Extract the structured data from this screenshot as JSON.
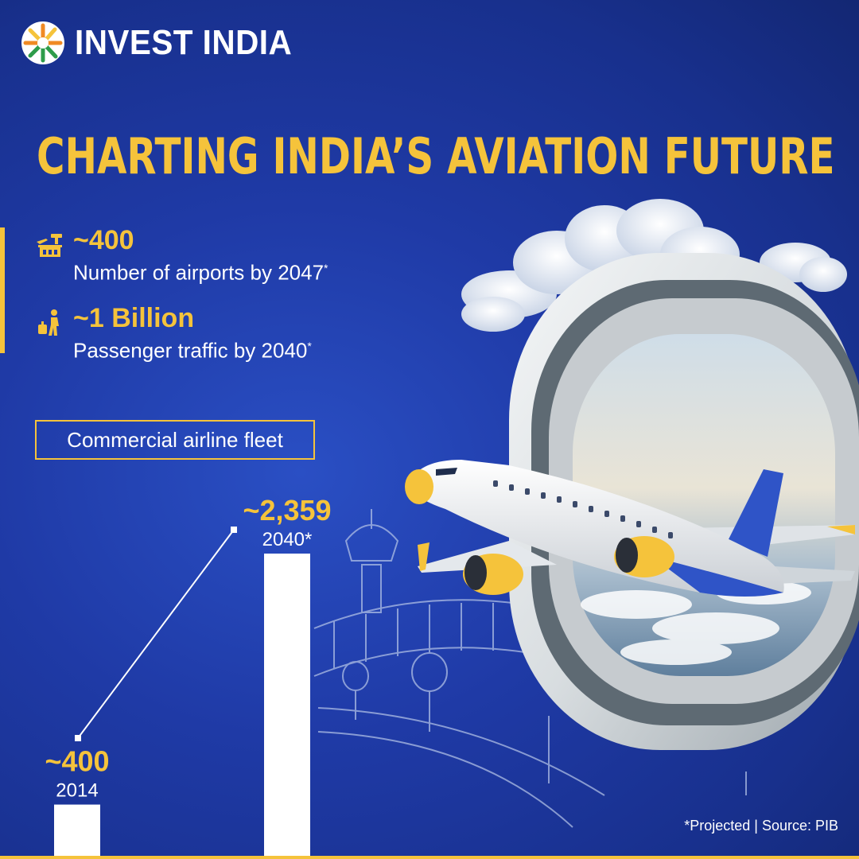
{
  "brand": {
    "name": "INVEST INDIA"
  },
  "headline": "CHARTING INDIA’S AVIATION FUTURE",
  "stats": [
    {
      "icon": "airport-icon",
      "value": "~400",
      "label": "Number of airports by 2047",
      "mark": "*"
    },
    {
      "icon": "traveler-icon",
      "value": "~1 Billion",
      "label": "Passenger traffic  by 2040",
      "mark": "*"
    }
  ],
  "chart_data": {
    "type": "bar",
    "title": "Commercial airline fleet",
    "categories": [
      "2014",
      "2040*"
    ],
    "values": [
      400,
      2359
    ],
    "value_labels": [
      "~400",
      "~2,359"
    ],
    "colors": {
      "bar": "#ffffff",
      "value": "#f5c33b",
      "trend_line": "#ffffff"
    }
  },
  "footnote": "*Projected | Source: PIB",
  "colors": {
    "accent": "#f5c33b",
    "background": "#1f3aa6",
    "text": "#ffffff"
  }
}
